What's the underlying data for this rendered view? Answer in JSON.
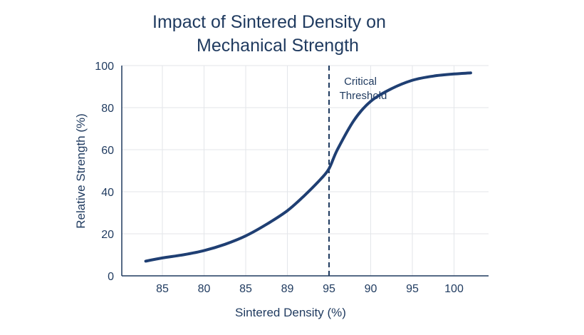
{
  "colors": {
    "text": "#1f3a5f",
    "line": "#1f3f73",
    "grid": "#e3e6ea",
    "axis": "#1f3a5f"
  },
  "chart_data": {
    "type": "line",
    "title_lines": [
      "Impact of Sintered Density on",
      "Mechanical Strength"
    ],
    "xlabel": "Sintered Density (%)",
    "ylabel": "Relative Strength (%)",
    "x_tick_labels": [
      "85",
      "80",
      "85",
      "89",
      "95",
      "90",
      "95",
      "100"
    ],
    "y_ticks": [
      0,
      20,
      40,
      60,
      80,
      100
    ],
    "ylim": [
      0,
      100
    ],
    "grid": true,
    "threshold": {
      "at_tick_index": 4,
      "label_lines": [
        "Critical",
        "Threshold"
      ],
      "style": "dashed"
    },
    "series": [
      {
        "x_tick_pos": [
          -0.4,
          0,
          0.5,
          1,
          1.5,
          2,
          2.5,
          3,
          3.4,
          3.8,
          4,
          4.2,
          4.6,
          5,
          5.5,
          6,
          6.5,
          7,
          7.4
        ],
        "values": [
          7,
          8.5,
          10,
          12,
          15,
          19,
          24.5,
          31,
          38,
          46,
          51,
          60,
          74,
          83,
          89,
          93,
          95,
          96,
          96.5
        ]
      }
    ]
  }
}
